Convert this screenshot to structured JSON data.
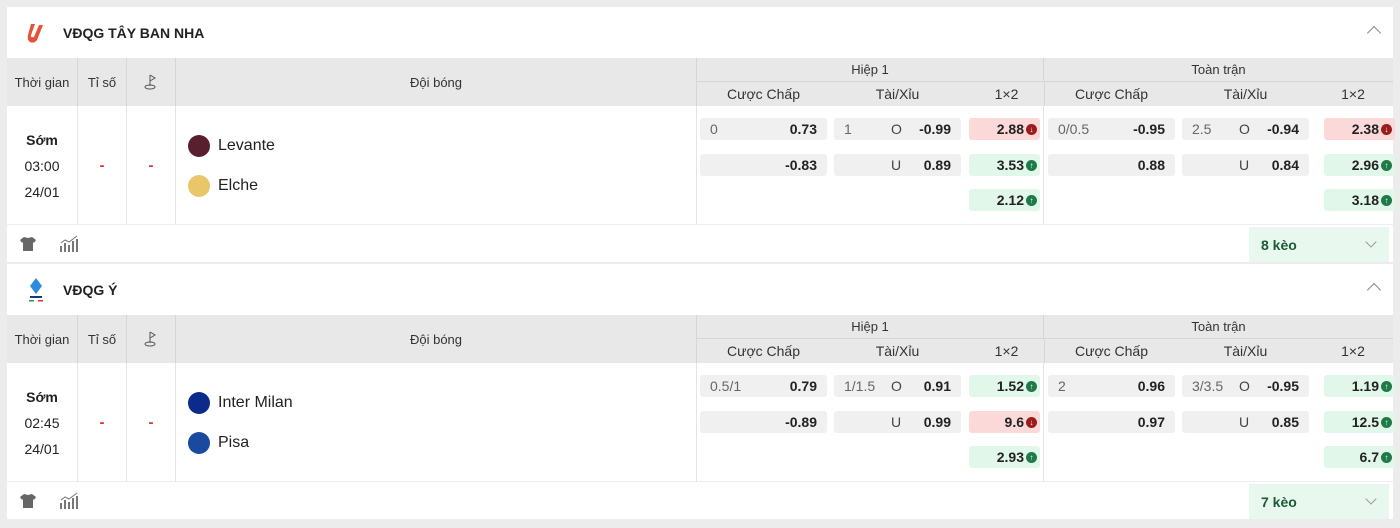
{
  "headers": {
    "time": "Thời gian",
    "score": "Tỉ số",
    "team": "Đội bóng",
    "first_half": "Hiệp 1",
    "full_time": "Toàn trận",
    "handicap": "Cược Chấp",
    "over_under": "Tài/Xỉu",
    "x12": "1×2"
  },
  "colors": {
    "up": "#e1f7ea",
    "down": "#fbd9d9",
    "score_dash": "#dd3333"
  },
  "leagues": [
    {
      "name": "VĐQG TÂY BAN NHA",
      "logo": "laliga-logo",
      "match": {
        "status": "Sớm",
        "time": "03:00",
        "date": "24/01",
        "score": "-",
        "corners": "-",
        "home": "Levante",
        "away": "Elche",
        "h1": {
          "hdp": [
            {
              "line": "0",
              "val": "0.73"
            },
            {
              "line": "",
              "val": "-0.83"
            }
          ],
          "ou": [
            {
              "line": "1",
              "side": "O",
              "val": "-0.99"
            },
            {
              "line": "",
              "side": "U",
              "val": "0.89"
            }
          ],
          "x12": [
            {
              "val": "2.88",
              "dir": "down"
            },
            {
              "val": "3.53",
              "dir": "up"
            },
            {
              "val": "2.12",
              "dir": "up"
            }
          ]
        },
        "ft": {
          "hdp": [
            {
              "line": "0/0.5",
              "val": "-0.95"
            },
            {
              "line": "",
              "val": "0.88"
            }
          ],
          "ou": [
            {
              "line": "2.5",
              "side": "O",
              "val": "-0.94"
            },
            {
              "line": "",
              "side": "U",
              "val": "0.84"
            }
          ],
          "x12": [
            {
              "val": "2.38",
              "dir": "down"
            },
            {
              "val": "2.96",
              "dir": "up"
            },
            {
              "val": "3.18",
              "dir": "up"
            }
          ]
        }
      },
      "more": "8 kèo"
    },
    {
      "name": "VĐQG Ý",
      "logo": "serie-a-logo",
      "match": {
        "status": "Sớm",
        "time": "02:45",
        "date": "24/01",
        "score": "-",
        "corners": "-",
        "home": "Inter Milan",
        "away": "Pisa",
        "h1": {
          "hdp": [
            {
              "line": "0.5/1",
              "val": "0.79"
            },
            {
              "line": "",
              "val": "-0.89"
            }
          ],
          "ou": [
            {
              "line": "1/1.5",
              "side": "O",
              "val": "0.91"
            },
            {
              "line": "",
              "side": "U",
              "val": "0.99"
            }
          ],
          "x12": [
            {
              "val": "1.52",
              "dir": "up"
            },
            {
              "val": "9.6",
              "dir": "down"
            },
            {
              "val": "2.93",
              "dir": "up"
            }
          ]
        },
        "ft": {
          "hdp": [
            {
              "line": "2",
              "val": "0.96"
            },
            {
              "line": "",
              "val": "0.97"
            }
          ],
          "ou": [
            {
              "line": "3/3.5",
              "side": "O",
              "val": "-0.95"
            },
            {
              "line": "",
              "side": "U",
              "val": "0.85"
            }
          ],
          "x12": [
            {
              "val": "1.19",
              "dir": "up"
            },
            {
              "val": "12.5",
              "dir": "up"
            },
            {
              "val": "6.7",
              "dir": "up"
            }
          ]
        }
      },
      "more": "7 kèo"
    }
  ]
}
